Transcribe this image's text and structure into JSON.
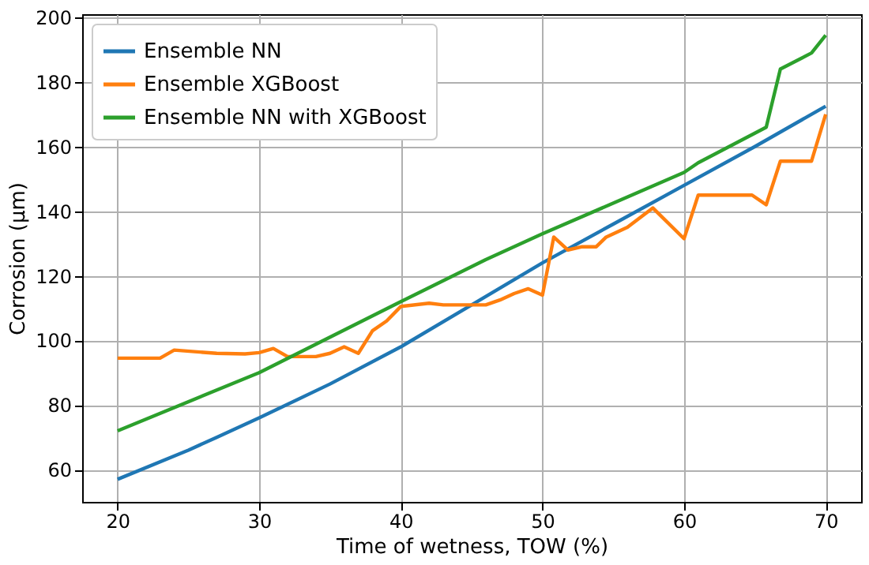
{
  "chart_data": {
    "type": "line",
    "xlabel": "Time of wetness, TOW (%)",
    "ylabel": "Corrosion (µm)",
    "xlim": [
      17.5,
      72.5
    ],
    "xticks": [
      20,
      30,
      40,
      50,
      60,
      70
    ],
    "ylim": [
      50,
      201
    ],
    "yticks": [
      60,
      80,
      100,
      120,
      140,
      160,
      180,
      200
    ],
    "grid": true,
    "legend": "top left",
    "series": [
      {
        "name": "Ensemble NN",
        "color": "#1f77b4",
        "x": [
          20,
          25,
          27,
          30,
          35,
          40,
          45,
          50,
          55,
          60,
          65,
          70
        ],
        "values": [
          57,
          66,
          70,
          76,
          86.5,
          98,
          111,
          124,
          136,
          148,
          160,
          172.5
        ]
      },
      {
        "name": "Ensemble XGBoost",
        "color": "#ff7f0e",
        "x": [
          20,
          23,
          24,
          27,
          29,
          30,
          31,
          32,
          34,
          35,
          36,
          37,
          38,
          39,
          40,
          42,
          43,
          45,
          46,
          47,
          48,
          49,
          50,
          50.8,
          51.8,
          52.8,
          53.8,
          54.5,
          56,
          57.8,
          60,
          61,
          64.8,
          65.8,
          66.8,
          69,
          70
        ],
        "values": [
          94.5,
          94.5,
          97,
          96,
          95.8,
          96.2,
          97.5,
          95,
          95,
          96,
          98,
          96,
          103,
          106,
          110.5,
          111.5,
          111,
          111,
          111,
          112.5,
          114.5,
          116,
          114,
          132,
          128,
          129,
          129,
          132,
          135,
          141,
          131.5,
          145,
          145,
          142,
          155.5,
          155.5,
          170
        ]
      },
      {
        "name": "Ensemble NN with XGBoost",
        "color": "#2ca02c",
        "x": [
          20,
          30,
          40,
          46,
          50,
          60,
          61,
          65.8,
          66.8,
          69,
          70
        ],
        "values": [
          72,
          90,
          112,
          125,
          133,
          152,
          155,
          166,
          184,
          189,
          194.5
        ]
      }
    ]
  }
}
